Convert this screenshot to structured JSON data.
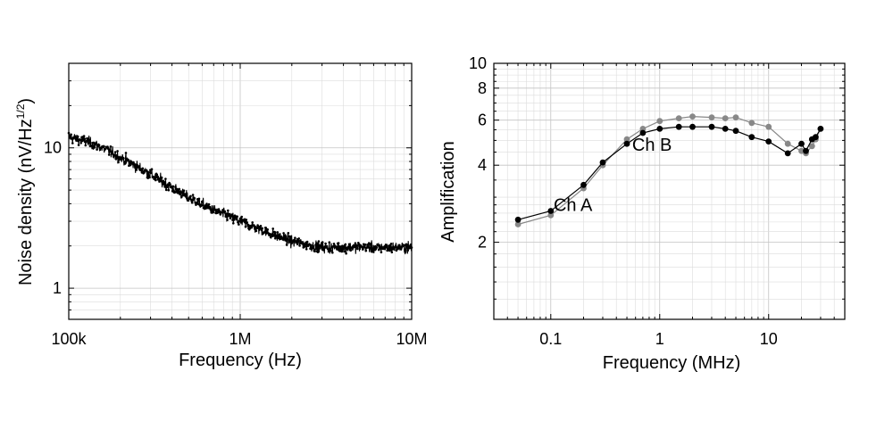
{
  "chart_data": [
    {
      "type": "line",
      "xscale": "log",
      "yscale": "log",
      "xlabel": "Frequency (Hz)",
      "ylabel": "Noise density (nV/Hz",
      "ylabel_sup": "1/2",
      "ylabel_end": ")",
      "xlim": [
        100000,
        10000000
      ],
      "ylim": [
        0.6,
        40
      ],
      "xticks": [
        {
          "value": 100000,
          "label": "100k"
        },
        {
          "value": 1000000,
          "label": "1M"
        },
        {
          "value": 10000000,
          "label": "10M"
        }
      ],
      "yticks": [
        {
          "value": 1,
          "label": "1"
        },
        {
          "value": 10,
          "label": "10"
        }
      ],
      "grid": true,
      "series": [
        {
          "color": "#000000",
          "markers": "small-dots",
          "noisy": true,
          "x": [
            100000,
            130000,
            170000,
            220000,
            300000,
            400000,
            500000,
            700000,
            1000000,
            1500000,
            2000000,
            3000000,
            5000000,
            7000000,
            10000000
          ],
          "y": [
            12,
            11,
            9.5,
            8,
            6.5,
            5.2,
            4.4,
            3.6,
            3.0,
            2.45,
            2.15,
            1.95,
            1.95,
            1.95,
            1.95
          ]
        }
      ]
    },
    {
      "type": "line",
      "xscale": "log",
      "yscale": "log",
      "xlabel": "Frequency (MHz)",
      "ylabel": "Amplification",
      "xlim": [
        0.03,
        50
      ],
      "ylim": [
        1,
        10
      ],
      "xticks": [
        {
          "value": 0.1,
          "label": "0.1"
        },
        {
          "value": 1,
          "label": "1"
        },
        {
          "value": 10,
          "label": "10"
        }
      ],
      "yticks": [
        {
          "value": 2,
          "label": "2"
        },
        {
          "value": 4,
          "label": "4"
        },
        {
          "value": 6,
          "label": "6"
        },
        {
          "value": 8,
          "label": "8"
        },
        {
          "value": 10,
          "label": "10"
        }
      ],
      "grid": true,
      "annotations": [
        {
          "text": "Ch B",
          "x": 0.85,
          "y": 4.55
        },
        {
          "text": "Ch A",
          "x": 0.16,
          "y": 2.65
        }
      ],
      "series": [
        {
          "name": "Ch B",
          "color": "#888888",
          "x": [
            0.05,
            0.1,
            0.2,
            0.3,
            0.5,
            0.7,
            1,
            1.5,
            2,
            3,
            4,
            5,
            7,
            10,
            15,
            20,
            22,
            25,
            27,
            30
          ],
          "y": [
            2.35,
            2.55,
            3.25,
            4.0,
            5.05,
            5.55,
            5.95,
            6.1,
            6.2,
            6.15,
            6.1,
            6.15,
            5.85,
            5.65,
            4.85,
            4.55,
            4.45,
            4.75,
            5.05,
            5.55
          ]
        },
        {
          "name": "Ch A",
          "color": "#000000",
          "x": [
            0.05,
            0.1,
            0.2,
            0.3,
            0.5,
            0.7,
            1,
            1.5,
            2,
            3,
            4,
            5,
            7,
            10,
            15,
            20,
            22,
            25,
            27,
            30
          ],
          "y": [
            2.45,
            2.65,
            3.35,
            4.1,
            4.85,
            5.35,
            5.55,
            5.65,
            5.65,
            5.65,
            5.55,
            5.45,
            5.15,
            4.95,
            4.45,
            4.85,
            4.55,
            5.05,
            5.15,
            5.55
          ]
        }
      ]
    }
  ]
}
